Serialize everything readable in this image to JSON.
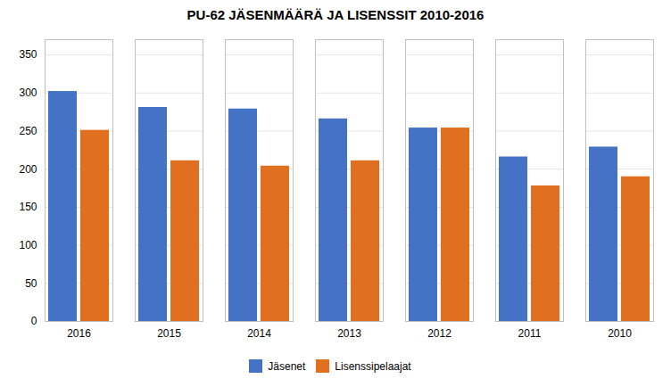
{
  "chart_data": {
    "type": "bar",
    "title": "PU-62 JÄSENMÄÄRÄ JA LISENSSIT 2010-2016",
    "categories": [
      "2016",
      "2015",
      "2014",
      "2013",
      "2012",
      "2011",
      "2010"
    ],
    "series": [
      {
        "name": "Jäsenet",
        "color": "#4472C4",
        "values": [
          302,
          281,
          279,
          266,
          254,
          216,
          229
        ]
      },
      {
        "name": "Lisenssipelaajat",
        "color": "#E07020",
        "values": [
          251,
          211,
          204,
          211,
          254,
          178,
          190
        ]
      }
    ],
    "ylim": [
      0,
      370
    ],
    "yticks": [
      0,
      50,
      100,
      150,
      200,
      250,
      300,
      350
    ],
    "grid": true,
    "legend": "bottom"
  }
}
